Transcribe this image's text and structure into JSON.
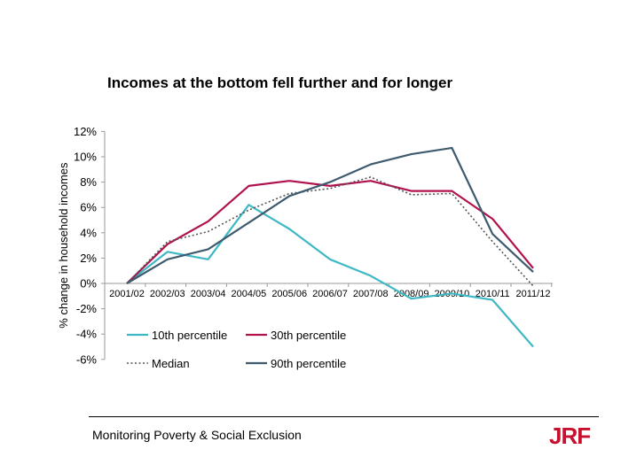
{
  "footer": {
    "text": "Monitoring Poverty & Social Exclusion"
  },
  "logo": {
    "text": "JRF",
    "color": "#c8102e"
  },
  "chart_data": {
    "type": "line",
    "title": "Incomes at the bottom fell further and for longer",
    "ylabel": "% change in  household incomes",
    "xlabel": "",
    "categories": [
      "2001/02",
      "2002/03",
      "2003/04",
      "2004/05",
      "2005/06",
      "2006/07",
      "2007/08",
      "2008/09",
      "2009/10",
      "2010/11",
      "2011/12"
    ],
    "ylim": [
      -6,
      12
    ],
    "yticks": [
      -6,
      -4,
      -2,
      0,
      2,
      4,
      6,
      8,
      10,
      12
    ],
    "ytick_labels": [
      "-6%",
      "-4%",
      "-2%",
      "0%",
      "2%",
      "4%",
      "6%",
      "8%",
      "10%",
      "12%"
    ],
    "grid": false,
    "legend_position": "bottom-left",
    "series": [
      {
        "name": "10th percentile",
        "color": "#3db8c4",
        "dash": "solid",
        "values": [
          0,
          2.5,
          1.9,
          6.2,
          4.3,
          1.9,
          0.6,
          -1.2,
          -0.8,
          -1.3,
          -5.0
        ]
      },
      {
        "name": "30th percentile",
        "color": "#b0124e",
        "dash": "solid",
        "values": [
          0,
          3.1,
          4.9,
          7.7,
          8.1,
          7.7,
          8.1,
          7.3,
          7.3,
          5.1,
          1.2
        ]
      },
      {
        "name": "Median",
        "color": "#555555",
        "dash": "dotted",
        "values": [
          0,
          3.3,
          4.1,
          5.8,
          7.1,
          7.5,
          8.4,
          7.0,
          7.1,
          3.3,
          -0.2
        ]
      },
      {
        "name": "90th percentile",
        "color": "#3e5a6e",
        "dash": "solid",
        "values": [
          0,
          1.9,
          2.7,
          4.8,
          6.9,
          8.0,
          9.4,
          10.2,
          10.7,
          3.9,
          0.9
        ]
      }
    ]
  }
}
